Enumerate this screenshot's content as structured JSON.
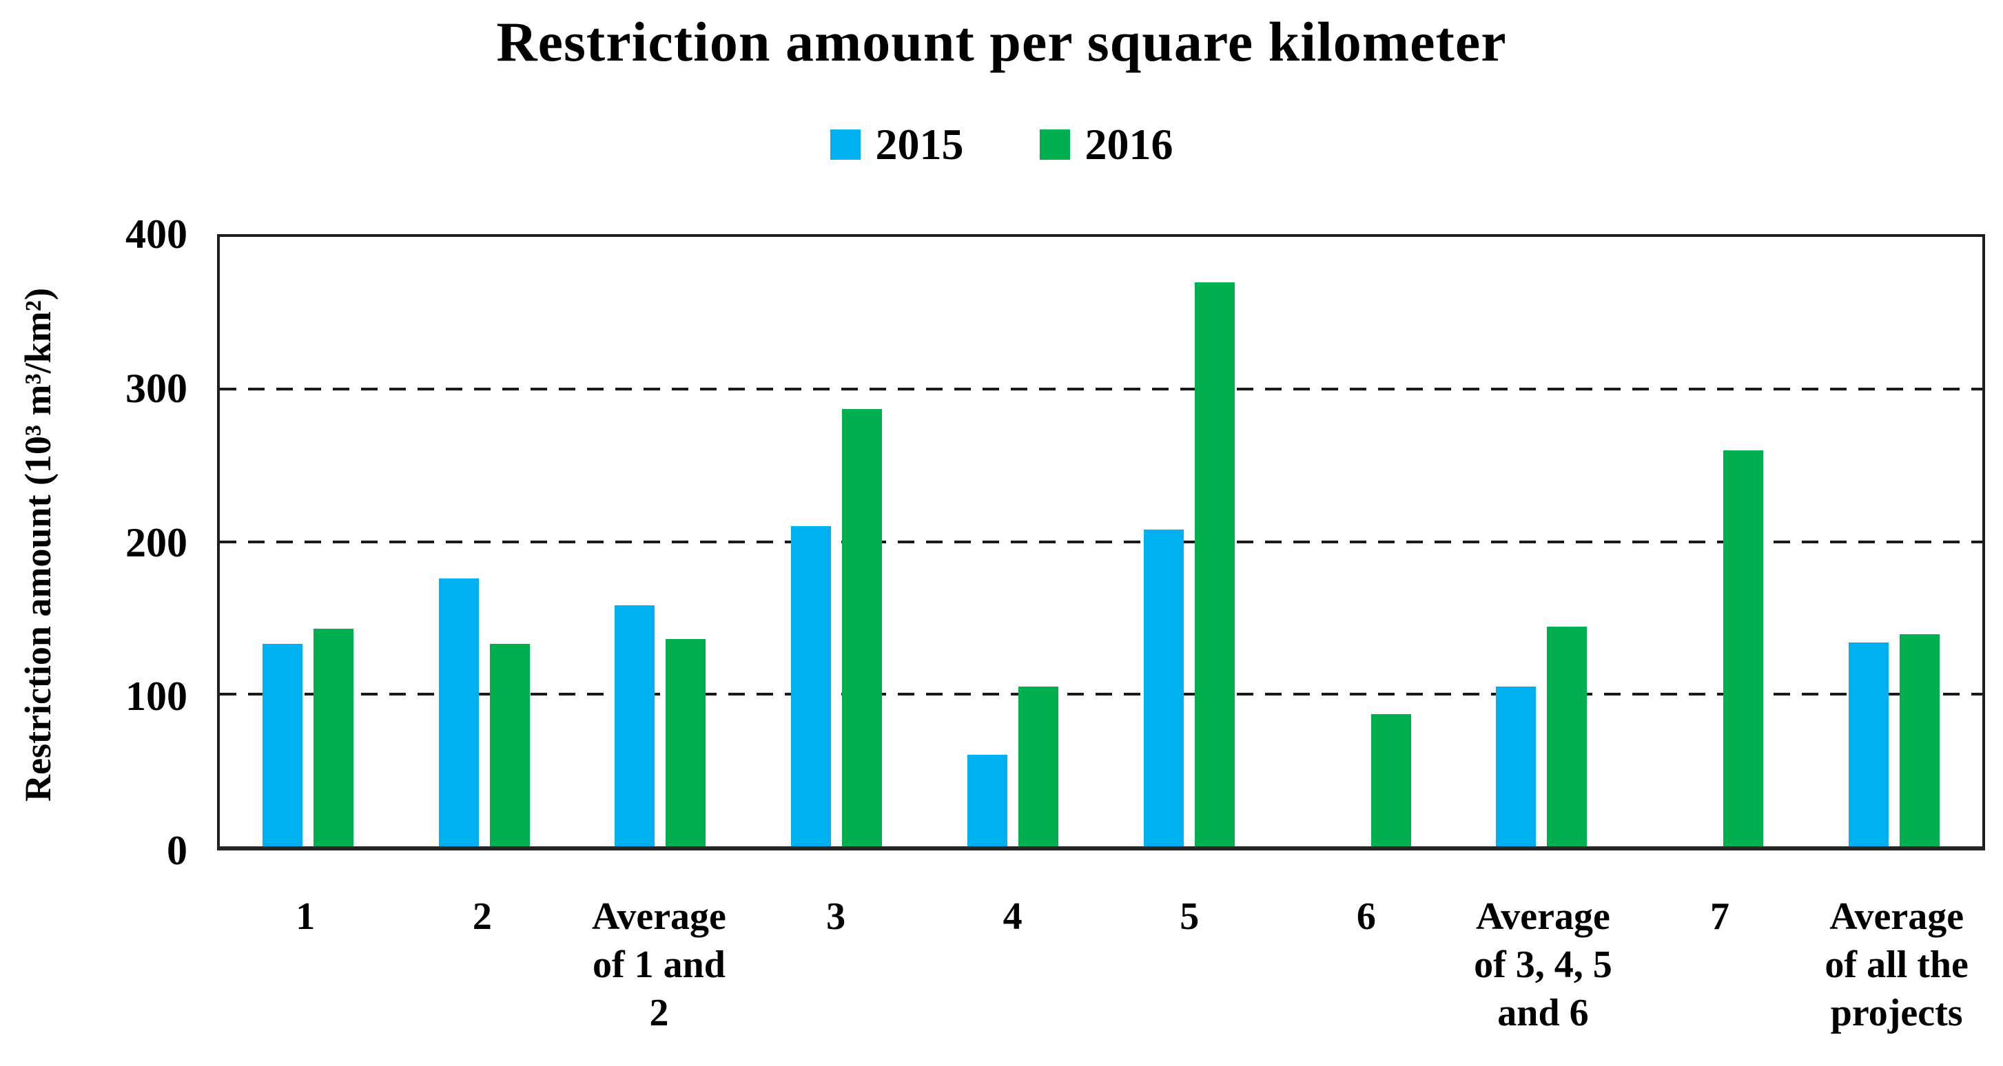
{
  "title": "Restriction amount per square kilometer",
  "y_axis": {
    "label": "Restriction amount (10³ m³/km²)",
    "ticks": [
      0,
      100,
      200,
      300,
      400
    ],
    "gridline_values": [
      100,
      200,
      300
    ]
  },
  "x_label_lines": [
    [
      "1"
    ],
    [
      "2"
    ],
    [
      "Average",
      "of 1 and",
      "2"
    ],
    [
      "3"
    ],
    [
      "4"
    ],
    [
      "5"
    ],
    [
      "6"
    ],
    [
      "Average",
      "of 3, 4, 5",
      "and 6"
    ],
    [
      "7"
    ],
    [
      "Average",
      "of all the",
      "projects"
    ]
  ],
  "chart_data": {
    "type": "bar",
    "title": "Restriction amount per square kilometer",
    "xlabel": "",
    "ylabel": "Restriction amount (10³ m³/km²)",
    "ylim": [
      0,
      400
    ],
    "grid": "horizontal dashed at 100, 200, 300",
    "legend_position": "top",
    "categories": [
      "1",
      "2",
      "Average of 1 and 2",
      "3",
      "4",
      "5",
      "6",
      "Average of 3, 4, 5 and 6",
      "7",
      "Average of all the projects"
    ],
    "series": [
      {
        "name": "2015",
        "color": "#00B0F0",
        "values": [
          133,
          176,
          158,
          210,
          60,
          208,
          0,
          105,
          0,
          134
        ]
      },
      {
        "name": "2016",
        "color": "#00B050",
        "values": [
          143,
          133,
          136,
          287,
          105,
          370,
          87,
          144,
          260,
          139
        ]
      }
    ]
  }
}
